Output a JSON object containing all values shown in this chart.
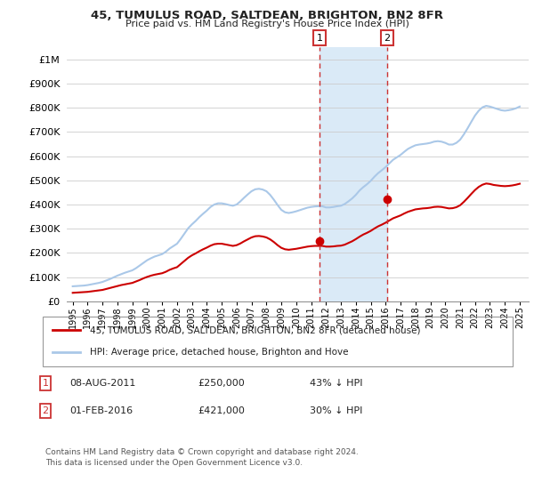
{
  "title": "45, TUMULUS ROAD, SALTDEAN, BRIGHTON, BN2 8FR",
  "subtitle": "Price paid vs. HM Land Registry's House Price Index (HPI)",
  "ytick_values": [
    0,
    100000,
    200000,
    300000,
    400000,
    500000,
    600000,
    700000,
    800000,
    900000,
    1000000
  ],
  "ylim": [
    0,
    1050000
  ],
  "xlim_start": 1994.6,
  "xlim_end": 2025.6,
  "xtick_years": [
    1995,
    1996,
    1997,
    1998,
    1999,
    2000,
    2001,
    2002,
    2003,
    2004,
    2005,
    2006,
    2007,
    2008,
    2009,
    2010,
    2011,
    2012,
    2013,
    2014,
    2015,
    2016,
    2017,
    2018,
    2019,
    2020,
    2021,
    2022,
    2023,
    2024,
    2025
  ],
  "hpi_color": "#aac8e8",
  "price_color": "#cc0000",
  "marker_color": "#cc0000",
  "vline_color": "#cc3333",
  "shading_color": "#daeaf7",
  "bg_color": "#ffffff",
  "grid_color": "#cccccc",
  "sale1_x": 2011.58,
  "sale1_y": 250000,
  "sale2_x": 2016.08,
  "sale2_y": 421000,
  "vline1_x": 2011.58,
  "vline2_x": 2016.08,
  "legend_label_price": "45, TUMULUS ROAD, SALTDEAN, BRIGHTON, BN2 8FR (detached house)",
  "legend_label_hpi": "HPI: Average price, detached house, Brighton and Hove",
  "annotation1_num": "1",
  "annotation2_num": "2",
  "note1_date": "08-AUG-2011",
  "note1_price": "£250,000",
  "note1_pct": "43% ↓ HPI",
  "note2_date": "01-FEB-2016",
  "note2_price": "£421,000",
  "note2_pct": "30% ↓ HPI",
  "footer": "Contains HM Land Registry data © Crown copyright and database right 2024.\nThis data is licensed under the Open Government Licence v3.0.",
  "hpi_x": [
    1995.0,
    1995.25,
    1995.5,
    1995.75,
    1996.0,
    1996.25,
    1996.5,
    1996.75,
    1997.0,
    1997.25,
    1997.5,
    1997.75,
    1998.0,
    1998.25,
    1998.5,
    1998.75,
    1999.0,
    1999.25,
    1999.5,
    1999.75,
    2000.0,
    2000.25,
    2000.5,
    2000.75,
    2001.0,
    2001.25,
    2001.5,
    2001.75,
    2002.0,
    2002.25,
    2002.5,
    2002.75,
    2003.0,
    2003.25,
    2003.5,
    2003.75,
    2004.0,
    2004.25,
    2004.5,
    2004.75,
    2005.0,
    2005.25,
    2005.5,
    2005.75,
    2006.0,
    2006.25,
    2006.5,
    2006.75,
    2007.0,
    2007.25,
    2007.5,
    2007.75,
    2008.0,
    2008.25,
    2008.5,
    2008.75,
    2009.0,
    2009.25,
    2009.5,
    2009.75,
    2010.0,
    2010.25,
    2010.5,
    2010.75,
    2011.0,
    2011.25,
    2011.5,
    2011.75,
    2012.0,
    2012.25,
    2012.5,
    2012.75,
    2013.0,
    2013.25,
    2013.5,
    2013.75,
    2014.0,
    2014.25,
    2014.5,
    2014.75,
    2015.0,
    2015.25,
    2015.5,
    2015.75,
    2016.0,
    2016.25,
    2016.5,
    2016.75,
    2017.0,
    2017.25,
    2017.5,
    2017.75,
    2018.0,
    2018.25,
    2018.5,
    2018.75,
    2019.0,
    2019.25,
    2019.5,
    2019.75,
    2020.0,
    2020.25,
    2020.5,
    2020.75,
    2021.0,
    2021.25,
    2021.5,
    2021.75,
    2022.0,
    2022.25,
    2022.5,
    2022.75,
    2023.0,
    2023.25,
    2023.5,
    2023.75,
    2024.0,
    2024.25,
    2024.5,
    2024.75,
    2025.0
  ],
  "hpi_y": [
    62000,
    63000,
    64000,
    65000,
    67000,
    70000,
    73000,
    76000,
    80000,
    86000,
    92000,
    99000,
    106000,
    112000,
    118000,
    123000,
    128000,
    137000,
    148000,
    159000,
    170000,
    178000,
    185000,
    190000,
    195000,
    205000,
    218000,
    228000,
    238000,
    258000,
    280000,
    302000,
    318000,
    332000,
    348000,
    362000,
    375000,
    390000,
    400000,
    405000,
    405000,
    402000,
    398000,
    395000,
    400000,
    413000,
    428000,
    442000,
    455000,
    463000,
    465000,
    462000,
    455000,
    440000,
    420000,
    398000,
    378000,
    368000,
    365000,
    368000,
    372000,
    377000,
    382000,
    387000,
    390000,
    392000,
    393000,
    393000,
    388000,
    388000,
    390000,
    393000,
    395000,
    402000,
    413000,
    425000,
    440000,
    458000,
    472000,
    484000,
    498000,
    515000,
    530000,
    542000,
    555000,
    570000,
    585000,
    595000,
    605000,
    618000,
    630000,
    638000,
    645000,
    648000,
    650000,
    652000,
    655000,
    660000,
    662000,
    660000,
    655000,
    648000,
    648000,
    655000,
    668000,
    690000,
    715000,
    742000,
    768000,
    788000,
    802000,
    808000,
    805000,
    800000,
    795000,
    790000,
    788000,
    790000,
    793000,
    798000,
    805000
  ],
  "price_x": [
    1995.0,
    1995.25,
    1995.5,
    1995.75,
    1996.0,
    1996.25,
    1996.5,
    1996.75,
    1997.0,
    1997.25,
    1997.5,
    1997.75,
    1998.0,
    1998.25,
    1998.5,
    1998.75,
    1999.0,
    1999.25,
    1999.5,
    1999.75,
    2000.0,
    2000.25,
    2000.5,
    2000.75,
    2001.0,
    2001.25,
    2001.5,
    2001.75,
    2002.0,
    2002.25,
    2002.5,
    2002.75,
    2003.0,
    2003.25,
    2003.5,
    2003.75,
    2004.0,
    2004.25,
    2004.5,
    2004.75,
    2005.0,
    2005.25,
    2005.5,
    2005.75,
    2006.0,
    2006.25,
    2006.5,
    2006.75,
    2007.0,
    2007.25,
    2007.5,
    2007.75,
    2008.0,
    2008.25,
    2008.5,
    2008.75,
    2009.0,
    2009.25,
    2009.5,
    2009.75,
    2010.0,
    2010.25,
    2010.5,
    2010.75,
    2011.0,
    2011.25,
    2011.5,
    2011.75,
    2012.0,
    2012.25,
    2012.5,
    2012.75,
    2013.0,
    2013.25,
    2013.5,
    2013.75,
    2014.0,
    2014.25,
    2014.5,
    2014.75,
    2015.0,
    2015.25,
    2015.5,
    2015.75,
    2016.0,
    2016.25,
    2016.5,
    2016.75,
    2017.0,
    2017.25,
    2017.5,
    2017.75,
    2018.0,
    2018.25,
    2018.5,
    2018.75,
    2019.0,
    2019.25,
    2019.5,
    2019.75,
    2020.0,
    2020.25,
    2020.5,
    2020.75,
    2021.0,
    2021.25,
    2021.5,
    2021.75,
    2022.0,
    2022.25,
    2022.5,
    2022.75,
    2023.0,
    2023.25,
    2023.5,
    2023.75,
    2024.0,
    2024.25,
    2024.5,
    2024.75,
    2025.0
  ],
  "price_y": [
    35000,
    36000,
    37000,
    38000,
    39000,
    41000,
    43000,
    45000,
    47000,
    51000,
    55000,
    59000,
    63000,
    67000,
    70000,
    73000,
    76000,
    82000,
    88000,
    95000,
    101000,
    106000,
    110000,
    113000,
    116000,
    122000,
    130000,
    136000,
    141000,
    154000,
    167000,
    180000,
    190000,
    198000,
    207000,
    215000,
    222000,
    230000,
    236000,
    238000,
    238000,
    235000,
    232000,
    229000,
    232000,
    239000,
    248000,
    256000,
    264000,
    269000,
    270000,
    268000,
    264000,
    256000,
    245000,
    232000,
    221000,
    215000,
    213000,
    215000,
    217000,
    220000,
    223000,
    226000,
    228000,
    229000,
    229000,
    229000,
    226000,
    226000,
    227000,
    229000,
    230000,
    234000,
    241000,
    248000,
    257000,
    267000,
    276000,
    283000,
    291000,
    301000,
    310000,
    317000,
    325000,
    334000,
    343000,
    349000,
    355000,
    363000,
    370000,
    375000,
    380000,
    382000,
    384000,
    385000,
    387000,
    390000,
    391000,
    390000,
    387000,
    384000,
    385000,
    389000,
    397000,
    411000,
    427000,
    444000,
    460000,
    473000,
    482000,
    487000,
    485000,
    481000,
    479000,
    477000,
    476000,
    477000,
    479000,
    482000,
    486000
  ]
}
